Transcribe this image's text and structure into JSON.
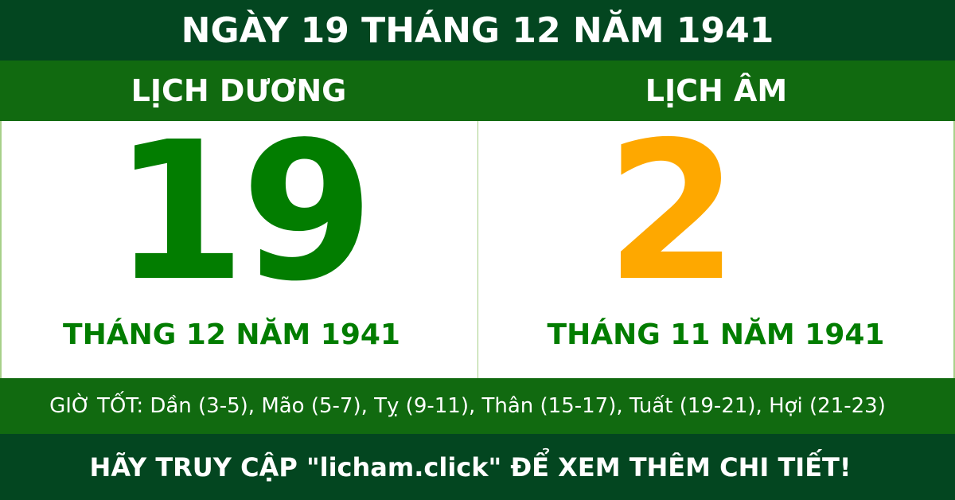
{
  "title": "NGÀY 19 THÁNG 12 NĂM 1941",
  "solar": {
    "label": "LỊCH DƯƠNG",
    "day": "19",
    "month_year": "THÁNG 12 NĂM 1941"
  },
  "lunar": {
    "label": "LỊCH ÂM",
    "day": "2",
    "month_year": "THÁNG 11 NĂM 1941"
  },
  "good_hours": "GIỜ TỐT: Dần (3-5), Mão (5-7), Tỵ (9-11), Thân (15-17), Tuất (19-21), Hợi (21-23)",
  "footer": "HÃY TRUY CẬP \"licham.click\" ĐỂ XEM THÊM CHI TIẾT!",
  "colors": {
    "dark_green": "#034620",
    "green": "#116a10",
    "solar_day": "#027d00",
    "lunar_day": "#fea800"
  }
}
